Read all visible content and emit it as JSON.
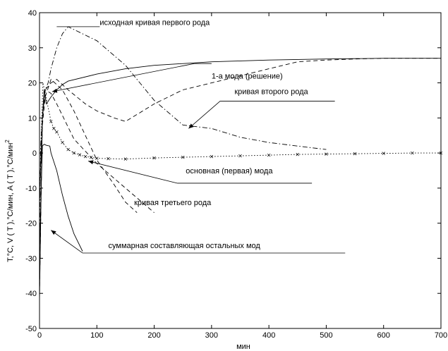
{
  "chart_data": {
    "type": "line",
    "title": "",
    "xlabel": "мин",
    "ylabel": "T,°C, V ( T ),°C/мин, A ( T ),°C/мин",
    "ylabel_superscript": "2",
    "xlim": [
      0,
      700
    ],
    "ylim": [
      -50,
      40
    ],
    "x_ticks": [
      0,
      100,
      200,
      300,
      400,
      500,
      600,
      700
    ],
    "y_ticks": [
      -50,
      -40,
      -30,
      -20,
      -10,
      0,
      10,
      20,
      30,
      40
    ],
    "x_tick_labels": [
      "0",
      "100",
      "200",
      "300",
      "400",
      "500",
      "600",
      "700"
    ],
    "y_tick_labels": [
      "-50",
      "-40",
      "-30",
      "-20",
      "-10",
      "0",
      "10",
      "20",
      "30",
      "40"
    ],
    "grid": false,
    "legend": "none",
    "series": [
      {
        "style": "solid",
        "x": [
          0,
          2,
          5,
          8,
          12,
          20,
          30,
          40,
          50,
          100,
          150,
          200,
          300,
          400,
          500,
          600,
          700
        ],
        "y": [
          -42,
          -20,
          10,
          18,
          14,
          16,
          18,
          19.5,
          20.5,
          22.5,
          24,
          25,
          26,
          26.5,
          26.8,
          27,
          27
        ]
      },
      {
        "style": "dashdot",
        "x": [
          0,
          2,
          5,
          10,
          15,
          20,
          30,
          40,
          50,
          100,
          150,
          200,
          250,
          300,
          350,
          400,
          450,
          500
        ],
        "y": [
          -30,
          2,
          10,
          18,
          20,
          24,
          30,
          34,
          36,
          32,
          25,
          15,
          8,
          7,
          4.5,
          3,
          2,
          1
        ]
      },
      {
        "style": "dashed",
        "x": [
          0,
          5,
          10,
          20,
          30,
          50,
          80,
          100,
          130,
          150,
          170,
          200,
          250,
          300,
          350,
          400,
          450,
          500,
          550,
          600,
          650,
          700
        ],
        "y": [
          -40,
          10,
          18,
          20,
          21,
          18,
          14,
          12,
          10,
          9,
          11,
          14,
          18,
          20,
          22,
          24,
          26,
          26.5,
          26.8,
          27,
          27,
          27
        ]
      },
      {
        "style": "dashed",
        "x": [
          0,
          5,
          10,
          20,
          40,
          60,
          80,
          100,
          130,
          150,
          170
        ],
        "y": [
          -10,
          8,
          16,
          21,
          18,
          12,
          5,
          -2,
          -9,
          -14,
          -17
        ]
      },
      {
        "style": "dashed",
        "x": [
          0,
          5,
          10,
          20,
          30,
          60,
          100,
          150,
          200
        ],
        "y": [
          -15,
          10,
          18,
          17,
          14,
          4,
          -3,
          -10,
          -17
        ]
      },
      {
        "style": "solid",
        "x": [
          0,
          3,
          5,
          8,
          12,
          18,
          20,
          30,
          40,
          50,
          60,
          75
        ],
        "y": [
          -30,
          -10,
          2,
          2.5,
          2.2,
          2,
          0,
          -5,
          -12,
          -18,
          -23,
          -28
        ]
      },
      {
        "style": "dotted",
        "x": [
          0,
          3,
          6,
          10,
          15,
          20,
          25,
          30,
          40,
          50,
          60,
          70,
          80,
          90,
          100,
          120,
          150,
          200,
          250,
          300,
          350,
          400,
          450,
          500,
          550,
          600,
          650,
          700
        ],
        "y": [
          -20,
          5,
          20,
          17,
          13,
          9,
          7,
          6,
          3,
          1,
          0,
          -0.5,
          -1,
          -1.2,
          -1.5,
          -1.6,
          -1.7,
          -1.4,
          -1.2,
          -1,
          -0.8,
          -0.6,
          -0.4,
          -0.3,
          -0.2,
          -0.1,
          0,
          0
        ],
        "markers": true
      }
    ],
    "annotations": [
      {
        "text": "исходная кривая первого рода",
        "x": 105,
        "y": 36.5,
        "line": [
          [
            30,
            36
          ],
          [
            105,
            36
          ]
        ],
        "arrow_to": null
      },
      {
        "text": "1-а мода (решение)",
        "x": 300,
        "y": 21.2,
        "line": [
          [
            270,
            25.5
          ],
          [
            300,
            25.5
          ]
        ],
        "arrow_to": [
          22,
          17.5
        ]
      },
      {
        "text": "кривая второго рода",
        "x": 340,
        "y": 16.8,
        "line": [
          [
            315,
            14.8
          ],
          [
            515,
            14.8
          ]
        ],
        "arrow_to": [
          260,
          7
        ]
      },
      {
        "text": "основная (первая) мода",
        "x": 255,
        "y": -5.8,
        "line": [
          [
            240,
            -8.6
          ],
          [
            475,
            -8.6
          ]
        ],
        "arrow_to": [
          85,
          -2.3
        ]
      },
      {
        "text": "кривая третьего рода",
        "x": 165,
        "y": -14.8,
        "line": [],
        "arrow_to": null
      },
      {
        "text": "суммарная составляющая остальных мод",
        "x": 120,
        "y": -27.1,
        "line": [
          [
            75,
            -28.5
          ],
          [
            533,
            -28.5
          ]
        ],
        "arrow_to": [
          20,
          -22
        ]
      }
    ]
  }
}
